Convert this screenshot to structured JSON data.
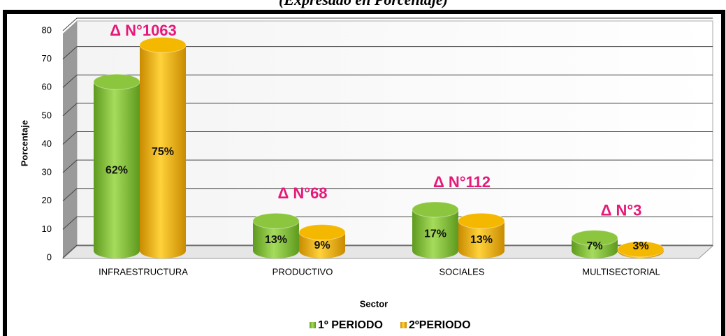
{
  "chart_data": {
    "type": "bar3d",
    "subtitle": "(Expresado en Porcentaje)",
    "categories": [
      "INFRAESTRUCTURA",
      "PRODUCTIVO",
      "SOCIALES",
      "MULTISECTORIAL"
    ],
    "series": [
      {
        "name": "1º PERIODO",
        "color": "#8cc63f",
        "values": [
          62,
          13,
          17,
          7
        ],
        "value_labels": [
          "62%",
          "13%",
          "17%",
          "7%"
        ]
      },
      {
        "name": "2ºPERIODO",
        "color": "#f5b800",
        "values": [
          75,
          9,
          13,
          3
        ],
        "value_labels": [
          "75%",
          "9%",
          "13%",
          "3%"
        ]
      }
    ],
    "annotations": [
      "Δ N°1063",
      "Δ N°68",
      "Δ N°112",
      "Δ N°3"
    ],
    "ylabel": "Porcentaje",
    "xlabel": "Sector",
    "ylim": [
      0,
      80
    ],
    "yticks": [
      0,
      10,
      20,
      30,
      40,
      50,
      60,
      70,
      80
    ],
    "grid": true,
    "legend": "bottom"
  }
}
